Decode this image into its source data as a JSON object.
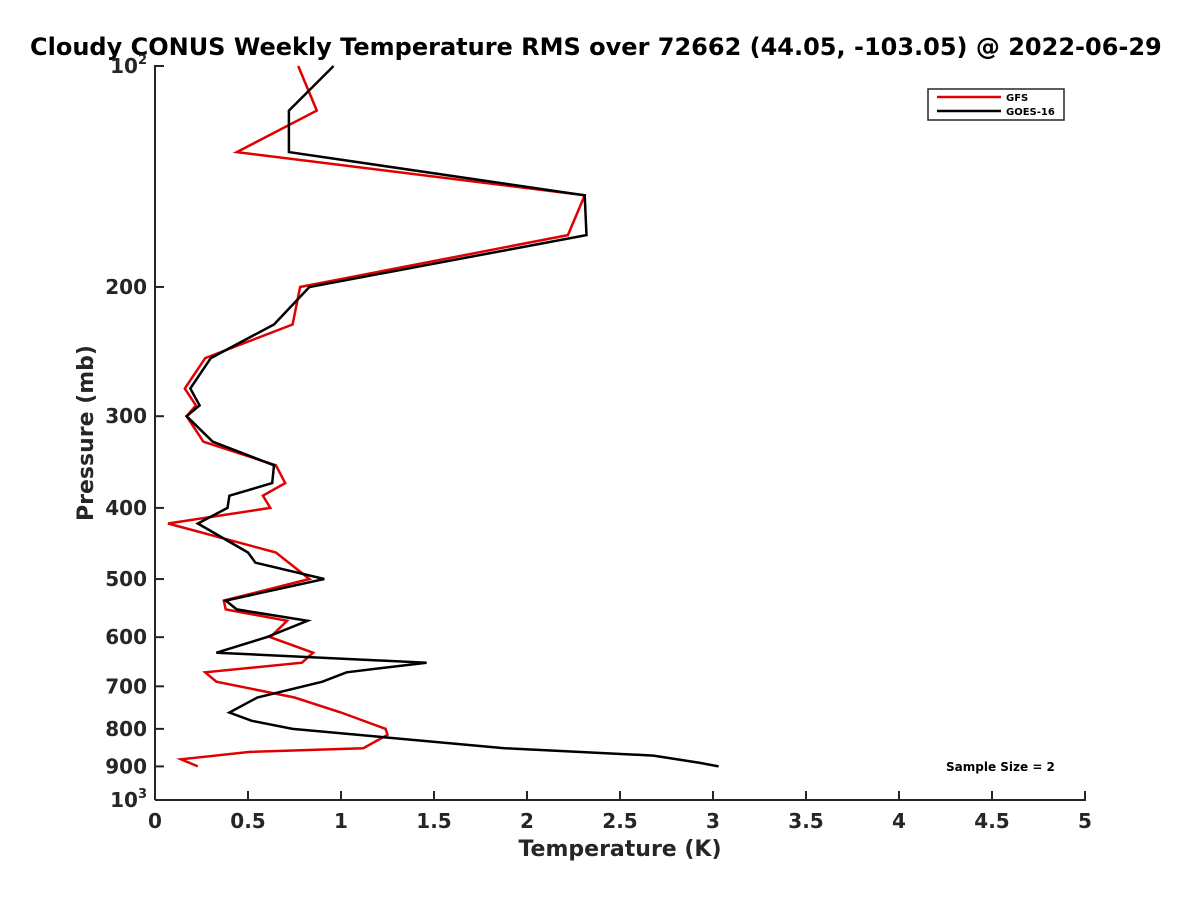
{
  "chart_data": {
    "type": "line",
    "title": "Cloudy CONUS Weekly Temperature RMS over 72662 (44.05, -103.05) @ 2022-06-29",
    "xlabel": "Temperature (K)",
    "ylabel": "Pressure (mb)",
    "xlim": [
      0,
      5
    ],
    "ylim": [
      100,
      1000
    ],
    "y_scale": "log",
    "y_reversed": true,
    "x_ticks": [
      "0",
      "0.5",
      "1",
      "1.5",
      "2",
      "2.5",
      "3",
      "3.5",
      "4",
      "4.5",
      "5"
    ],
    "y_ticks": [
      {
        "value": 100,
        "base": "10",
        "exp": "2"
      },
      {
        "value": 200,
        "label": "200"
      },
      {
        "value": 300,
        "label": "300"
      },
      {
        "value": 400,
        "label": "400"
      },
      {
        "value": 500,
        "label": "500"
      },
      {
        "value": 600,
        "label": "600"
      },
      {
        "value": 700,
        "label": "700"
      },
      {
        "value": 800,
        "label": "800"
      },
      {
        "value": 900,
        "label": "900"
      },
      {
        "value": 1000,
        "base": "10",
        "exp": "3"
      }
    ],
    "legend_position": "top-right",
    "grid": false,
    "annotation": "Sample Size = 2",
    "series": [
      {
        "name": "GFS",
        "color": "#e00000",
        "points": [
          [
            0.77,
            100
          ],
          [
            0.87,
            115
          ],
          [
            0.44,
            131
          ],
          [
            2.31,
            150
          ],
          [
            2.22,
            170
          ],
          [
            0.78,
            200
          ],
          [
            0.74,
            225
          ],
          [
            0.27,
            250
          ],
          [
            0.16,
            275
          ],
          [
            0.22,
            290
          ],
          [
            0.17,
            300
          ],
          [
            0.26,
            325
          ],
          [
            0.65,
            350
          ],
          [
            0.7,
            370
          ],
          [
            0.58,
            385
          ],
          [
            0.62,
            400
          ],
          [
            0.07,
            420
          ],
          [
            0.65,
            460
          ],
          [
            0.83,
            500
          ],
          [
            0.37,
            535
          ],
          [
            0.38,
            550
          ],
          [
            0.71,
            570
          ],
          [
            0.62,
            600
          ],
          [
            0.85,
            630
          ],
          [
            0.79,
            650
          ],
          [
            0.27,
            670
          ],
          [
            0.33,
            690
          ],
          [
            0.75,
            725
          ],
          [
            1.0,
            760
          ],
          [
            1.24,
            800
          ],
          [
            1.25,
            815
          ],
          [
            1.12,
            850
          ],
          [
            0.51,
            860
          ],
          [
            0.14,
            880
          ],
          [
            0.23,
            900
          ]
        ]
      },
      {
        "name": "GOES-16",
        "color": "#000000",
        "points": [
          [
            0.96,
            100
          ],
          [
            0.72,
            115
          ],
          [
            0.72,
            131
          ],
          [
            2.31,
            150
          ],
          [
            2.32,
            170
          ],
          [
            0.83,
            200
          ],
          [
            0.64,
            225
          ],
          [
            0.3,
            250
          ],
          [
            0.19,
            275
          ],
          [
            0.24,
            290
          ],
          [
            0.17,
            300
          ],
          [
            0.31,
            325
          ],
          [
            0.64,
            350
          ],
          [
            0.63,
            370
          ],
          [
            0.4,
            385
          ],
          [
            0.39,
            400
          ],
          [
            0.23,
            420
          ],
          [
            0.5,
            460
          ],
          [
            0.54,
            475
          ],
          [
            0.91,
            500
          ],
          [
            0.38,
            535
          ],
          [
            0.44,
            550
          ],
          [
            0.82,
            570
          ],
          [
            0.6,
            600
          ],
          [
            0.33,
            630
          ],
          [
            1.46,
            650
          ],
          [
            1.03,
            670
          ],
          [
            0.9,
            690
          ],
          [
            0.55,
            725
          ],
          [
            0.4,
            760
          ],
          [
            0.52,
            780
          ],
          [
            0.74,
            800
          ],
          [
            1.88,
            850
          ],
          [
            2.68,
            870
          ],
          [
            2.93,
            890
          ],
          [
            3.03,
            900
          ]
        ]
      }
    ]
  }
}
